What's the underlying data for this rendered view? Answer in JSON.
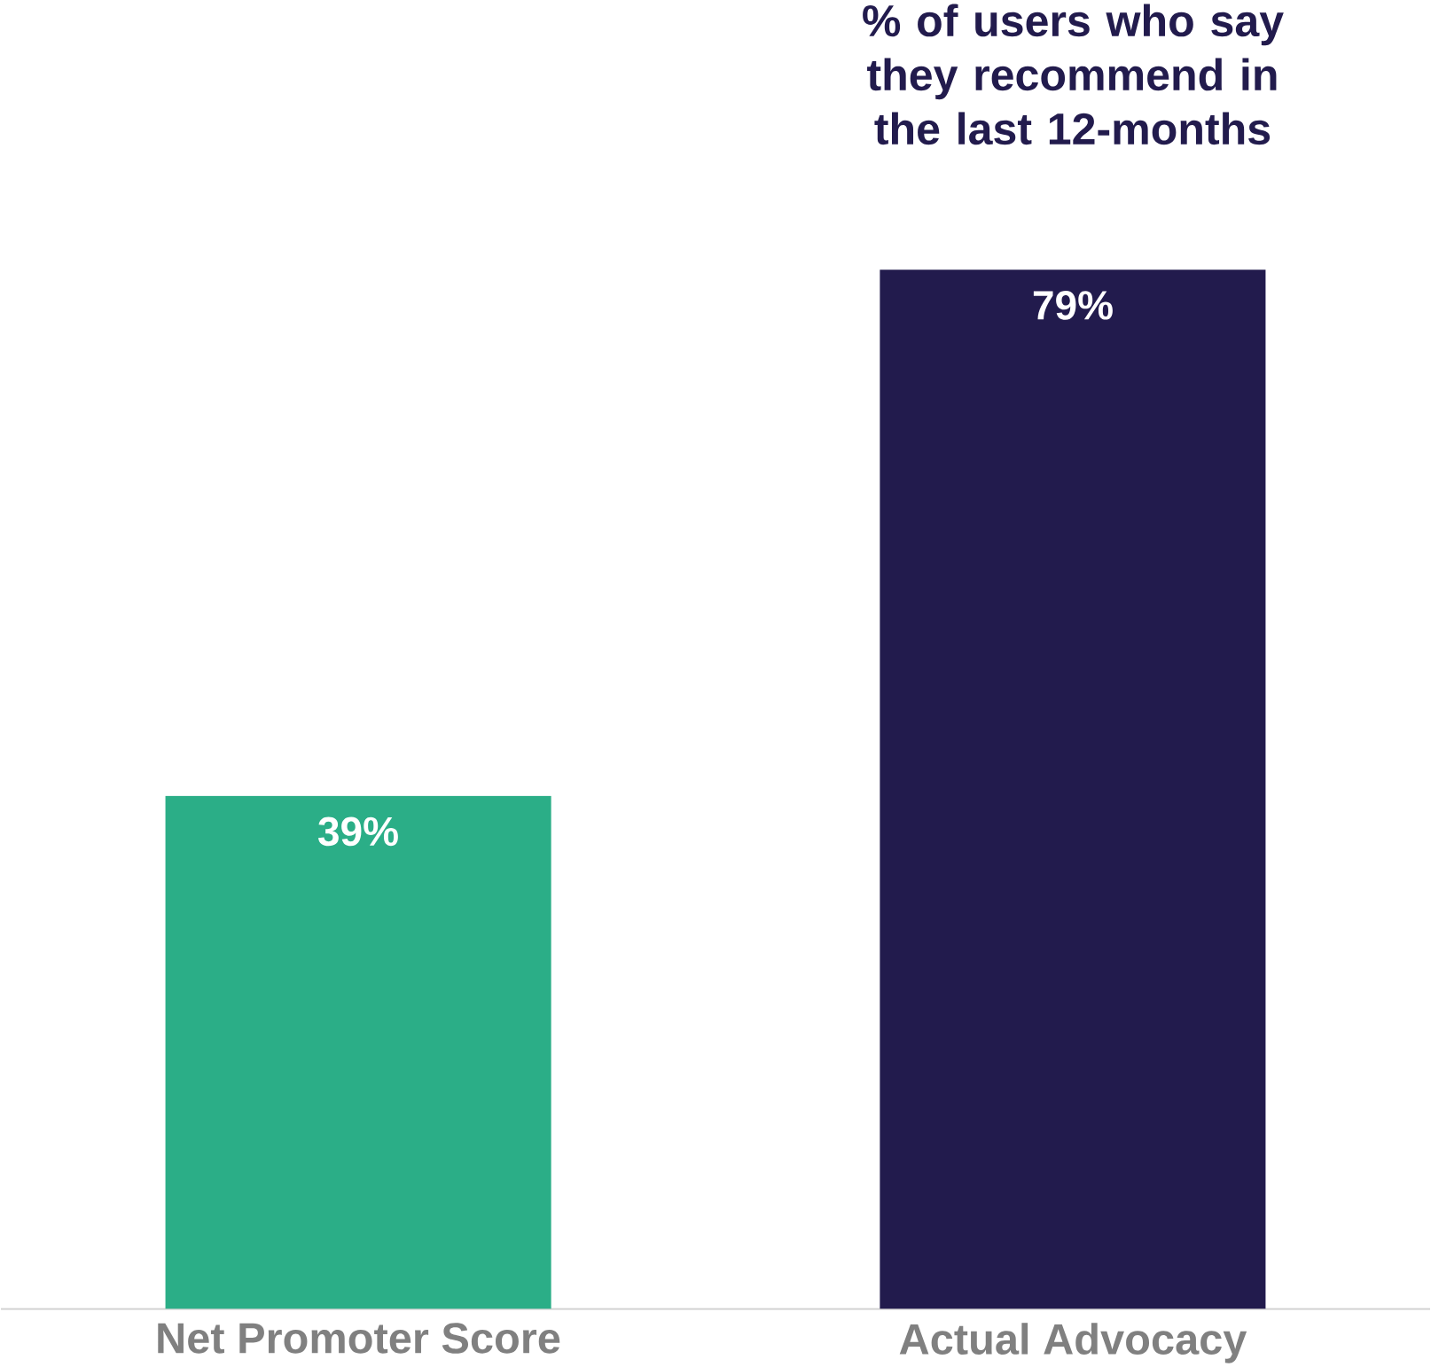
{
  "chart_data": {
    "type": "bar",
    "title": "% of users who say they recommend in the last 12-months",
    "categories": [
      "Net Promoter Score",
      "Actual Advocacy"
    ],
    "values": [
      39,
      79
    ],
    "colors": [
      "#2bae87",
      "#221b4d"
    ],
    "value_labels": [
      "39%",
      "79%"
    ],
    "data_labels": true
  }
}
